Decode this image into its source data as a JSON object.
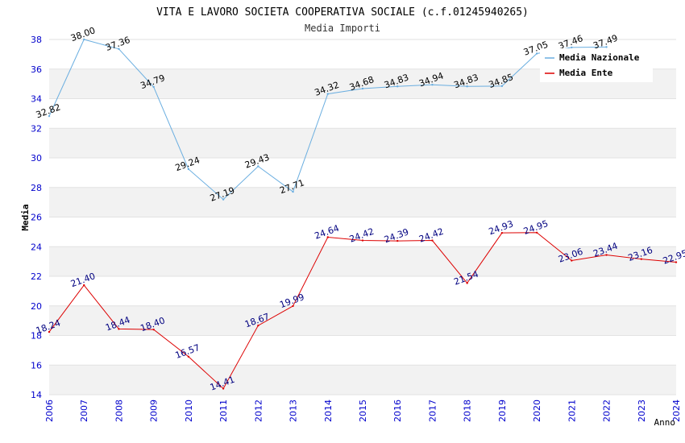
{
  "chart_data": {
    "type": "line",
    "title": "VITA E LAVORO SOCIETA COOPERATIVA SOCIALE (c.f.01245940265)",
    "subtitle": "Media Importi",
    "xlabel": "Anno",
    "ylabel": "Media",
    "ylim": [
      14,
      38
    ],
    "yticks": [
      "14",
      "16",
      "18",
      "20",
      "22",
      "24",
      "26",
      "28",
      "30",
      "32",
      "34",
      "36",
      "38"
    ],
    "categories": [
      "2006",
      "2007",
      "2008",
      "2009",
      "2010",
      "2011",
      "2012",
      "2013",
      "2014",
      "2015",
      "2016",
      "2017",
      "2018",
      "2019",
      "2020",
      "2021",
      "2022",
      "2023",
      "2024"
    ],
    "grid": "horizontal bands",
    "legend_position": "top-right",
    "series": [
      {
        "name": "Media Nazionale",
        "color": "#6aaee0",
        "label_color": "#000000",
        "values": [
          32.82,
          38.0,
          37.36,
          34.79,
          29.24,
          27.19,
          29.43,
          27.71,
          34.32,
          34.68,
          34.83,
          34.94,
          34.83,
          34.85,
          37.05,
          37.46,
          37.49,
          null,
          null
        ],
        "labels": [
          "32.82",
          "38.00",
          "37.36",
          "34.79",
          "29.24",
          "27.19",
          "29.43",
          "27.71",
          "34.32",
          "34.68",
          "34.83",
          "34.94",
          "34.83",
          "34.85",
          "37.05",
          "37.46",
          "37.49",
          null,
          null
        ]
      },
      {
        "name": "Media Ente",
        "color": "#dd0000",
        "label_color": "#000080",
        "values": [
          18.24,
          21.4,
          18.44,
          18.4,
          16.57,
          14.41,
          18.67,
          19.99,
          24.64,
          24.42,
          24.39,
          24.42,
          21.54,
          24.93,
          24.95,
          23.06,
          23.44,
          23.16,
          22.95
        ],
        "labels": [
          "18.24",
          "21.40",
          "18.44",
          "18.40",
          "16.57",
          "14.41",
          "18.67",
          "19.99",
          "24.64",
          "24.42",
          "24.39",
          "24.42",
          "21.54",
          "24.93",
          "24.95",
          "23.06",
          "23.44",
          "23.16",
          "22.95"
        ]
      }
    ]
  }
}
